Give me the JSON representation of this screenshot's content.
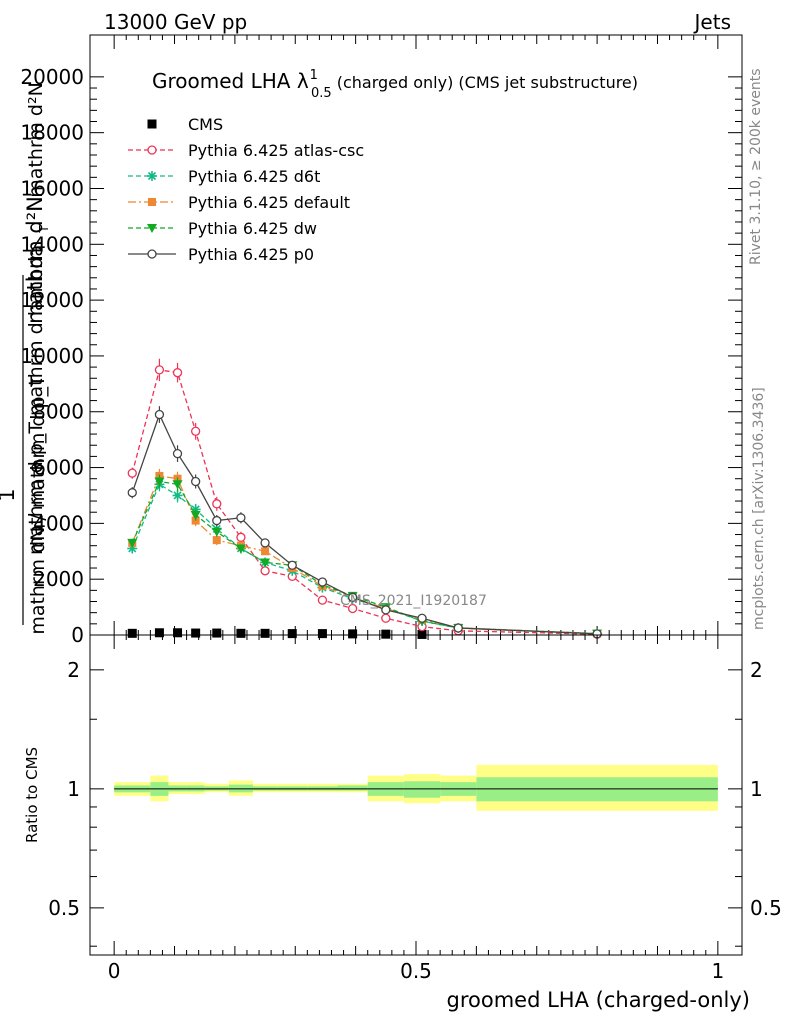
{
  "header": {
    "left": "13000 GeV pp",
    "right": "Jets"
  },
  "side_text": {
    "rivet": "Rivet 3.1.10, ≥ 200k events",
    "mcplots": "mcplots.cern.ch [arXiv:1306.3436]"
  },
  "watermark": "CMS_2021_I1920187",
  "colors": {
    "cms": "#000000",
    "atlas_csc": "#ee3355",
    "d6t": "#11bb88",
    "default": "#ee8833",
    "dw": "#11aa22",
    "p0": "#444444",
    "band_outer": "#ffff88",
    "band_inner": "#99ee88"
  },
  "chart_data": [
    {
      "type": "line",
      "title_main": "Groomed LHA ",
      "title_lambda": "λ",
      "title_sup": "1",
      "title_sub": "0.5",
      "title_rest": "  (charged only) (CMS jet substructure)",
      "ylabel_top": "mathrm d²N",
      "ylabel_mid": "mathrm d p_T mathrm d lambda",
      "ylabel_mid2": "mathrm d²N",
      "ylabel_frac": "1",
      "ylabel_bottom": "mathrm dN / mathrm d p_T",
      "ylabel_sub": "T",
      "xlim": [
        -0.04,
        1.04
      ],
      "ylim": [
        0,
        21500
      ],
      "yticks": [
        0,
        2000,
        4000,
        6000,
        8000,
        10000,
        12000,
        14000,
        16000,
        18000,
        20000
      ],
      "yticklabels": [
        "0",
        "2000",
        "4000",
        "6000",
        "8000",
        "10000",
        "12000",
        "14000",
        "16000",
        "18000",
        "20000"
      ],
      "legend_position": "top-left",
      "series": [
        {
          "name": "CMS",
          "style": "data",
          "x": [
            0.03,
            0.075,
            0.105,
            0.135,
            0.17,
            0.21,
            0.25,
            0.295,
            0.345,
            0.395,
            0.45,
            0.51
          ],
          "y": [
            60,
            80,
            80,
            70,
            70,
            60,
            60,
            50,
            50,
            40,
            30,
            20
          ]
        },
        {
          "name": "Pythia 6.425 atlas-csc",
          "style": "dashed-open-circle",
          "x": [
            0.03,
            0.075,
            0.105,
            0.135,
            0.17,
            0.21,
            0.25,
            0.295,
            0.345,
            0.395,
            0.45,
            0.51,
            0.57,
            0.8
          ],
          "y": [
            5800,
            9500,
            9400,
            7300,
            4700,
            3500,
            2300,
            2100,
            1250,
            950,
            600,
            300,
            150,
            30
          ],
          "err": [
            200,
            400,
            350,
            300,
            250,
            200,
            150,
            150,
            100,
            80,
            60,
            40,
            30,
            10
          ]
        },
        {
          "name": "Pythia 6.425 d6t",
          "style": "dashed-star",
          "x": [
            0.03,
            0.075,
            0.105,
            0.135,
            0.17,
            0.21,
            0.25,
            0.295,
            0.345,
            0.395,
            0.45,
            0.51,
            0.57,
            0.8
          ],
          "y": [
            3100,
            5400,
            5000,
            4500,
            3800,
            3100,
            2600,
            2300,
            1700,
            1300,
            950,
            500,
            250,
            50
          ],
          "err": [
            150,
            250,
            250,
            200,
            180,
            150,
            130,
            120,
            100,
            80,
            60,
            40,
            30,
            10
          ]
        },
        {
          "name": "Pythia 6.425 default",
          "style": "dashdot-square",
          "x": [
            0.03,
            0.075,
            0.105,
            0.135,
            0.17,
            0.21,
            0.25,
            0.295,
            0.345,
            0.395,
            0.45,
            0.51,
            0.57,
            0.8
          ],
          "y": [
            3300,
            5700,
            5600,
            4100,
            3400,
            3200,
            3000,
            2400,
            1750,
            1350,
            950,
            550,
            260,
            50
          ],
          "err": [
            150,
            250,
            250,
            200,
            180,
            150,
            130,
            120,
            100,
            80,
            60,
            40,
            30,
            10
          ]
        },
        {
          "name": "Pythia 6.425 dw",
          "style": "dashed-down-triangle",
          "x": [
            0.03,
            0.075,
            0.105,
            0.135,
            0.17,
            0.21,
            0.25,
            0.295,
            0.345,
            0.395,
            0.45,
            0.51,
            0.57,
            0.8
          ],
          "y": [
            3300,
            5500,
            5400,
            4300,
            3700,
            3100,
            2600,
            2500,
            1800,
            1400,
            1000,
            500,
            250,
            50
          ],
          "err": [
            150,
            250,
            250,
            200,
            180,
            150,
            130,
            120,
            100,
            80,
            60,
            40,
            30,
            10
          ]
        },
        {
          "name": "Pythia 6.425 p0",
          "style": "solid-open-circle",
          "x": [
            0.03,
            0.075,
            0.105,
            0.135,
            0.17,
            0.21,
            0.25,
            0.295,
            0.345,
            0.395,
            0.45,
            0.51,
            0.57,
            0.8
          ],
          "y": [
            5100,
            7900,
            6500,
            5500,
            4100,
            4200,
            3300,
            2500,
            1900,
            1350,
            900,
            600,
            250,
            40
          ],
          "err": [
            200,
            300,
            300,
            250,
            200,
            200,
            150,
            130,
            100,
            80,
            60,
            40,
            30,
            10
          ]
        }
      ]
    },
    {
      "type": "line",
      "ylabel": "Ratio to CMS",
      "xlabel": "groomed LHA (charged-only)",
      "xlim": [
        -0.04,
        1.04
      ],
      "ylim": [
        0.38,
        2.45
      ],
      "log_y": true,
      "yticks": [
        0.5,
        1,
        2
      ],
      "yticklabels": [
        "0.5",
        "1",
        "2"
      ],
      "xticks": [
        0,
        0.5,
        1
      ],
      "xticklabels": [
        "0",
        "0.5",
        "1"
      ],
      "reference_line": 1,
      "bands": {
        "edges": [
          0,
          0.06,
          0.09,
          0.12,
          0.15,
          0.19,
          0.23,
          0.27,
          0.32,
          0.37,
          0.42,
          0.48,
          0.54,
          0.6,
          1.0
        ],
        "outer_low": [
          0.96,
          0.93,
          0.97,
          0.97,
          0.98,
          0.96,
          0.98,
          0.98,
          0.98,
          0.98,
          0.93,
          0.92,
          0.93,
          0.88
        ],
        "outer_high": [
          1.04,
          1.08,
          1.04,
          1.04,
          1.03,
          1.05,
          1.03,
          1.03,
          1.03,
          1.03,
          1.08,
          1.09,
          1.08,
          1.15
        ],
        "inner_low": [
          0.98,
          0.96,
          0.985,
          0.985,
          0.99,
          0.98,
          0.99,
          0.99,
          0.99,
          0.99,
          0.96,
          0.95,
          0.96,
          0.93
        ],
        "inner_high": [
          1.02,
          1.04,
          1.02,
          1.02,
          1.015,
          1.025,
          1.015,
          1.015,
          1.015,
          1.02,
          1.04,
          1.045,
          1.04,
          1.07
        ]
      }
    }
  ]
}
